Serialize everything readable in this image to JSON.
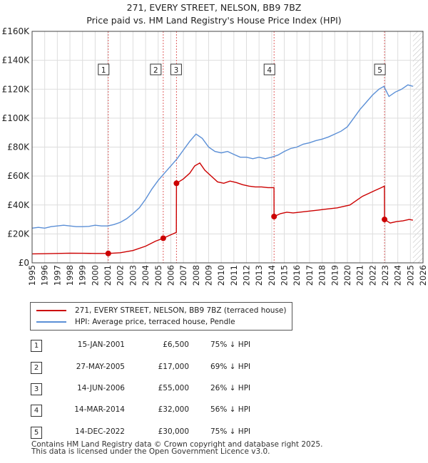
{
  "chart_data": {
    "type": "line",
    "title": "271, EVERY STREET, NELSON, BB9 7BZ",
    "subtitle": "Price paid vs. HM Land Registry's House Price Index (HPI)",
    "xlabel": "",
    "ylabel": "",
    "xlim": [
      1995,
      2026
    ],
    "ylim": [
      0,
      160000
    ],
    "x_ticks": [
      1995,
      1996,
      1997,
      1998,
      1999,
      2000,
      2001,
      2002,
      2003,
      2004,
      2005,
      2006,
      2007,
      2008,
      2009,
      2010,
      2011,
      2012,
      2013,
      2014,
      2015,
      2016,
      2017,
      2018,
      2019,
      2020,
      2021,
      2022,
      2023,
      2024,
      2025,
      2026
    ],
    "y_ticks": [
      0,
      20000,
      40000,
      60000,
      80000,
      100000,
      120000,
      140000,
      160000
    ],
    "y_tick_labels": [
      "£0",
      "£20K",
      "£40K",
      "£60K",
      "£80K",
      "£100K",
      "£120K",
      "£140K",
      "£160K"
    ],
    "grid": true,
    "future_hatch_from": 2025.2,
    "series": [
      {
        "name": "271, EVERY STREET, NELSON, BB9 7BZ (terraced house)",
        "color": "#cc0000",
        "points": [
          [
            1995.0,
            6200
          ],
          [
            1996.0,
            6300
          ],
          [
            1997.0,
            6500
          ],
          [
            1998.0,
            6700
          ],
          [
            1999.0,
            6600
          ],
          [
            2000.0,
            6500
          ],
          [
            2001.04,
            6500
          ],
          [
            2002.0,
            7000
          ],
          [
            2003.0,
            8500
          ],
          [
            2004.0,
            11500
          ],
          [
            2004.8,
            15000
          ],
          [
            2005.4,
            17000
          ],
          [
            2005.9,
            19000
          ],
          [
            2006.44,
            21000
          ],
          [
            2006.45,
            55000
          ],
          [
            2007.0,
            58000
          ],
          [
            2007.5,
            62000
          ],
          [
            2007.9,
            67000
          ],
          [
            2008.3,
            69000
          ],
          [
            2008.7,
            64000
          ],
          [
            2009.2,
            60000
          ],
          [
            2009.7,
            56000
          ],
          [
            2010.2,
            55000
          ],
          [
            2010.7,
            56500
          ],
          [
            2011.2,
            55500
          ],
          [
            2011.7,
            54000
          ],
          [
            2012.2,
            53000
          ],
          [
            2012.7,
            52500
          ],
          [
            2013.2,
            52500
          ],
          [
            2013.7,
            52000
          ],
          [
            2014.18,
            52000
          ],
          [
            2014.19,
            32000
          ],
          [
            2014.7,
            34000
          ],
          [
            2015.2,
            35000
          ],
          [
            2015.7,
            34500
          ],
          [
            2016.2,
            35000
          ],
          [
            2016.7,
            35500
          ],
          [
            2017.2,
            36000
          ],
          [
            2017.7,
            36500
          ],
          [
            2018.2,
            37000
          ],
          [
            2018.7,
            37500
          ],
          [
            2019.2,
            38000
          ],
          [
            2019.7,
            39000
          ],
          [
            2020.2,
            40000
          ],
          [
            2020.7,
            43000
          ],
          [
            2021.2,
            46000
          ],
          [
            2021.7,
            48000
          ],
          [
            2022.2,
            50000
          ],
          [
            2022.7,
            52000
          ],
          [
            2022.94,
            53000
          ],
          [
            2022.95,
            30000
          ],
          [
            2023.4,
            27500
          ],
          [
            2023.9,
            28500
          ],
          [
            2024.4,
            29000
          ],
          [
            2024.9,
            30000
          ],
          [
            2025.2,
            29500
          ]
        ]
      },
      {
        "name": "HPI: Average price, terraced house, Pendle",
        "color": "#5b8fd6",
        "points": [
          [
            1995.0,
            24000
          ],
          [
            1995.5,
            24500
          ],
          [
            1996.0,
            24000
          ],
          [
            1996.5,
            25000
          ],
          [
            1997.0,
            25500
          ],
          [
            1997.5,
            26000
          ],
          [
            1998.0,
            25500
          ],
          [
            1998.5,
            25000
          ],
          [
            1999.0,
            25000
          ],
          [
            1999.5,
            25200
          ],
          [
            2000.0,
            26000
          ],
          [
            2000.5,
            25500
          ],
          [
            2001.0,
            25500
          ],
          [
            2001.5,
            26500
          ],
          [
            2002.0,
            28000
          ],
          [
            2002.5,
            30500
          ],
          [
            2003.0,
            34000
          ],
          [
            2003.5,
            38000
          ],
          [
            2004.0,
            44000
          ],
          [
            2004.5,
            51000
          ],
          [
            2005.0,
            57000
          ],
          [
            2005.5,
            62000
          ],
          [
            2006.0,
            67000
          ],
          [
            2006.5,
            72000
          ],
          [
            2007.0,
            78000
          ],
          [
            2007.5,
            84000
          ],
          [
            2008.0,
            89000
          ],
          [
            2008.5,
            86000
          ],
          [
            2009.0,
            80000
          ],
          [
            2009.5,
            77000
          ],
          [
            2010.0,
            76000
          ],
          [
            2010.5,
            77000
          ],
          [
            2011.0,
            75000
          ],
          [
            2011.5,
            73000
          ],
          [
            2012.0,
            73000
          ],
          [
            2012.5,
            72000
          ],
          [
            2013.0,
            73000
          ],
          [
            2013.5,
            72000
          ],
          [
            2014.0,
            73000
          ],
          [
            2014.5,
            74500
          ],
          [
            2015.0,
            77000
          ],
          [
            2015.5,
            79000
          ],
          [
            2016.0,
            80000
          ],
          [
            2016.5,
            82000
          ],
          [
            2017.0,
            83000
          ],
          [
            2017.5,
            84500
          ],
          [
            2018.0,
            85500
          ],
          [
            2018.5,
            87000
          ],
          [
            2019.0,
            89000
          ],
          [
            2019.5,
            91000
          ],
          [
            2020.0,
            94000
          ],
          [
            2020.5,
            100000
          ],
          [
            2021.0,
            106000
          ],
          [
            2021.5,
            111000
          ],
          [
            2022.0,
            116000
          ],
          [
            2022.5,
            120000
          ],
          [
            2022.9,
            122000
          ],
          [
            2023.3,
            115000
          ],
          [
            2023.8,
            118000
          ],
          [
            2024.3,
            120000
          ],
          [
            2024.8,
            123000
          ],
          [
            2025.2,
            122000
          ]
        ]
      }
    ],
    "sales": [
      {
        "num": "1",
        "x": 2001.04,
        "y": 6500
      },
      {
        "num": "2",
        "x": 2005.4,
        "y": 17000
      },
      {
        "num": "3",
        "x": 2006.45,
        "y": 55000
      },
      {
        "num": "4",
        "x": 2014.19,
        "y": 32000
      },
      {
        "num": "5",
        "x": 2022.95,
        "y": 30000
      }
    ]
  },
  "legend": {
    "property_label": "271, EVERY STREET, NELSON, BB9 7BZ (terraced house)",
    "hpi_label": "HPI: Average price, terraced house, Pendle"
  },
  "table": [
    {
      "num": "1",
      "date": "15-JAN-2001",
      "price": "£6,500",
      "hpi": "75% ↓ HPI"
    },
    {
      "num": "2",
      "date": "27-MAY-2005",
      "price": "£17,000",
      "hpi": "69% ↓ HPI"
    },
    {
      "num": "3",
      "date": "14-JUN-2006",
      "price": "£55,000",
      "hpi": "26% ↓ HPI"
    },
    {
      "num": "4",
      "date": "14-MAR-2014",
      "price": "£32,000",
      "hpi": "56% ↓ HPI"
    },
    {
      "num": "5",
      "date": "14-DEC-2022",
      "price": "£30,000",
      "hpi": "75% ↓ HPI"
    }
  ],
  "footer": {
    "line1": "Contains HM Land Registry data © Crown copyright and database right 2025.",
    "line2": "This data is licensed under the Open Government Licence v3.0."
  }
}
